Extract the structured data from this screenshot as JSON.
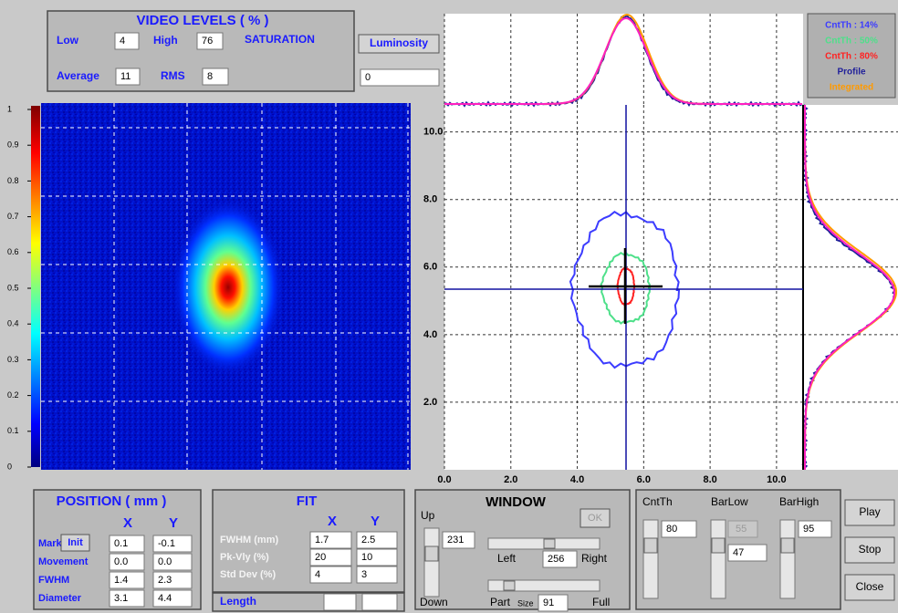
{
  "video_levels": {
    "title": "VIDEO LEVELS ( % )",
    "low_label": "Low",
    "low": 4,
    "high_label": "High",
    "high": 76,
    "status": "SATURATION",
    "average_label": "Average",
    "average": 11,
    "rms_label": "RMS",
    "rms": 8
  },
  "luminosity": {
    "label": "Luminosity",
    "value": 0
  },
  "colorbar": {
    "lim": [
      0,
      1
    ],
    "ticks": [
      1,
      0.9,
      0.8,
      0.7,
      0.6,
      0.5,
      0.4,
      0.3,
      0.2,
      0.1,
      0
    ]
  },
  "plot": {
    "xlim": [
      0,
      10.8
    ],
    "ylim": [
      0,
      10.8
    ],
    "grid": true,
    "xticks": [
      {
        "value": 0,
        "label": "0.0"
      },
      {
        "value": 2,
        "label": "2.0"
      },
      {
        "value": 4,
        "label": "4.0"
      },
      {
        "value": 6,
        "label": "6.0"
      },
      {
        "value": 8,
        "label": "8.0"
      },
      {
        "value": 10,
        "label": "10.0"
      }
    ],
    "yticks": [
      {
        "value": 2,
        "label": "2.0"
      },
      {
        "value": 4,
        "label": "4.0"
      },
      {
        "value": 6,
        "label": "6.0"
      },
      {
        "value": 8,
        "label": "8.0"
      },
      {
        "value": 10,
        "label": "10.0"
      }
    ]
  },
  "legend": [
    {
      "label": "CntTh : 14%",
      "color": "#3c3cff"
    },
    {
      "label": "CntTh : 50%",
      "color": "#4ee08a"
    },
    {
      "label": "CntTh : 80%",
      "color": "#ff2222"
    },
    {
      "label": "Profile",
      "color": "#20209a"
    },
    {
      "label": "Integrated",
      "color": "#ff9a00"
    }
  ],
  "position": {
    "title": "POSITION ( mm )",
    "col_x": "X",
    "col_y": "Y",
    "init": "Init",
    "rows": [
      {
        "label": "Mark",
        "x": 0.1,
        "y": -0.1
      },
      {
        "label": "Movement",
        "x": "0.0",
        "y": "0.0"
      },
      {
        "label": "FWHM",
        "x": 1.4,
        "y": 2.3
      },
      {
        "label": "Diameter",
        "x": 3.1,
        "y": 4.4
      }
    ]
  },
  "fit": {
    "title": "FIT",
    "col_x": "X",
    "col_y": "Y",
    "rows": [
      {
        "label": "FWHM (mm)",
        "x": 1.7,
        "y": 2.5
      },
      {
        "label": "Pk-Vly (%)",
        "x": 20,
        "y": 10
      },
      {
        "label": "Std Dev (%)",
        "x": 4,
        "y": 3
      }
    ],
    "length_label": "Length"
  },
  "window": {
    "title": "WINDOW",
    "ok": "OK",
    "up": "Up",
    "up_value": 231,
    "left": "Left",
    "center_value": 256,
    "right": "Right",
    "down": "Down",
    "part": "Part",
    "size_label": "Size",
    "size_value": 91,
    "full": "Full"
  },
  "thresholds": {
    "cntth_label": "CntTh",
    "cntth": 80,
    "barlow_label": "BarLow",
    "barlow_min": 55,
    "barlow": 47,
    "barhigh_label": "BarHigh",
    "barhigh": 95
  },
  "buttons": [
    "Play",
    "Stop",
    "Close"
  ]
}
